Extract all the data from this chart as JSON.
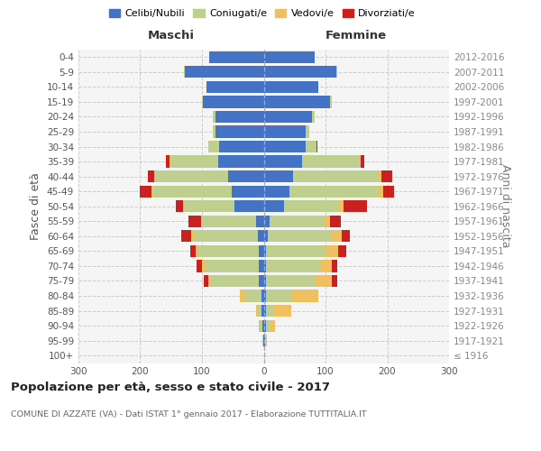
{
  "age_groups": [
    "100+",
    "95-99",
    "90-94",
    "85-89",
    "80-84",
    "75-79",
    "70-74",
    "65-69",
    "60-64",
    "55-59",
    "50-54",
    "45-49",
    "40-44",
    "35-39",
    "30-34",
    "25-29",
    "20-24",
    "15-19",
    "10-14",
    "5-9",
    "0-4"
  ],
  "birth_years": [
    "≤ 1916",
    "1917-1921",
    "1922-1926",
    "1927-1931",
    "1932-1936",
    "1937-1941",
    "1942-1946",
    "1947-1951",
    "1952-1956",
    "1957-1961",
    "1962-1966",
    "1967-1971",
    "1972-1976",
    "1977-1981",
    "1982-1986",
    "1987-1991",
    "1992-1996",
    "1997-2001",
    "2002-2006",
    "2007-2011",
    "2012-2016"
  ],
  "males_celibi": [
    0,
    1,
    2,
    3,
    4,
    8,
    8,
    8,
    10,
    12,
    48,
    52,
    58,
    73,
    72,
    78,
    78,
    98,
    92,
    128,
    88
  ],
  "males_coniugati": [
    0,
    1,
    4,
    8,
    28,
    78,
    88,
    98,
    103,
    88,
    82,
    128,
    118,
    78,
    18,
    4,
    4,
    2,
    1,
    1,
    0
  ],
  "males_vedovi": [
    0,
    0,
    2,
    2,
    6,
    4,
    4,
    4,
    4,
    2,
    1,
    2,
    2,
    1,
    0,
    0,
    0,
    0,
    0,
    0,
    0
  ],
  "males_divorziati": [
    0,
    0,
    0,
    0,
    0,
    7,
    9,
    9,
    16,
    20,
    12,
    18,
    10,
    7,
    0,
    0,
    0,
    0,
    0,
    0,
    0
  ],
  "females_nubili": [
    0,
    2,
    4,
    4,
    4,
    4,
    4,
    4,
    7,
    9,
    33,
    42,
    48,
    62,
    68,
    68,
    78,
    108,
    88,
    118,
    83
  ],
  "females_coniugate": [
    0,
    1,
    6,
    12,
    42,
    78,
    88,
    98,
    103,
    88,
    88,
    143,
    138,
    93,
    18,
    6,
    4,
    2,
    1,
    1,
    0
  ],
  "females_vedove": [
    1,
    2,
    8,
    28,
    42,
    28,
    18,
    18,
    16,
    10,
    8,
    8,
    4,
    2,
    0,
    0,
    0,
    0,
    0,
    0,
    0
  ],
  "females_divorziate": [
    0,
    0,
    0,
    0,
    1,
    9,
    9,
    14,
    14,
    18,
    38,
    18,
    18,
    6,
    1,
    0,
    0,
    0,
    0,
    0,
    0
  ],
  "color_celibi": "#4472C4",
  "color_coniugati": "#BECF8E",
  "color_vedovi": "#F0C060",
  "color_divorziati": "#CC2020",
  "xlim": 300,
  "title": "Popolazione per età, sesso e stato civile - 2017",
  "subtitle": "COMUNE DI AZZATE (VA) - Dati ISTAT 1° gennaio 2017 - Elaborazione TUTTITALIA.IT",
  "ylabel_left": "Fasce di età",
  "ylabel_right": "Anni di nascita",
  "label_maschi": "Maschi",
  "label_femmine": "Femmine",
  "legend_labels": [
    "Celibi/Nubili",
    "Coniugati/e",
    "Vedovi/e",
    "Divorziati/e"
  ],
  "bg_color": "#f5f5f5",
  "grid_color": "#cccccc"
}
